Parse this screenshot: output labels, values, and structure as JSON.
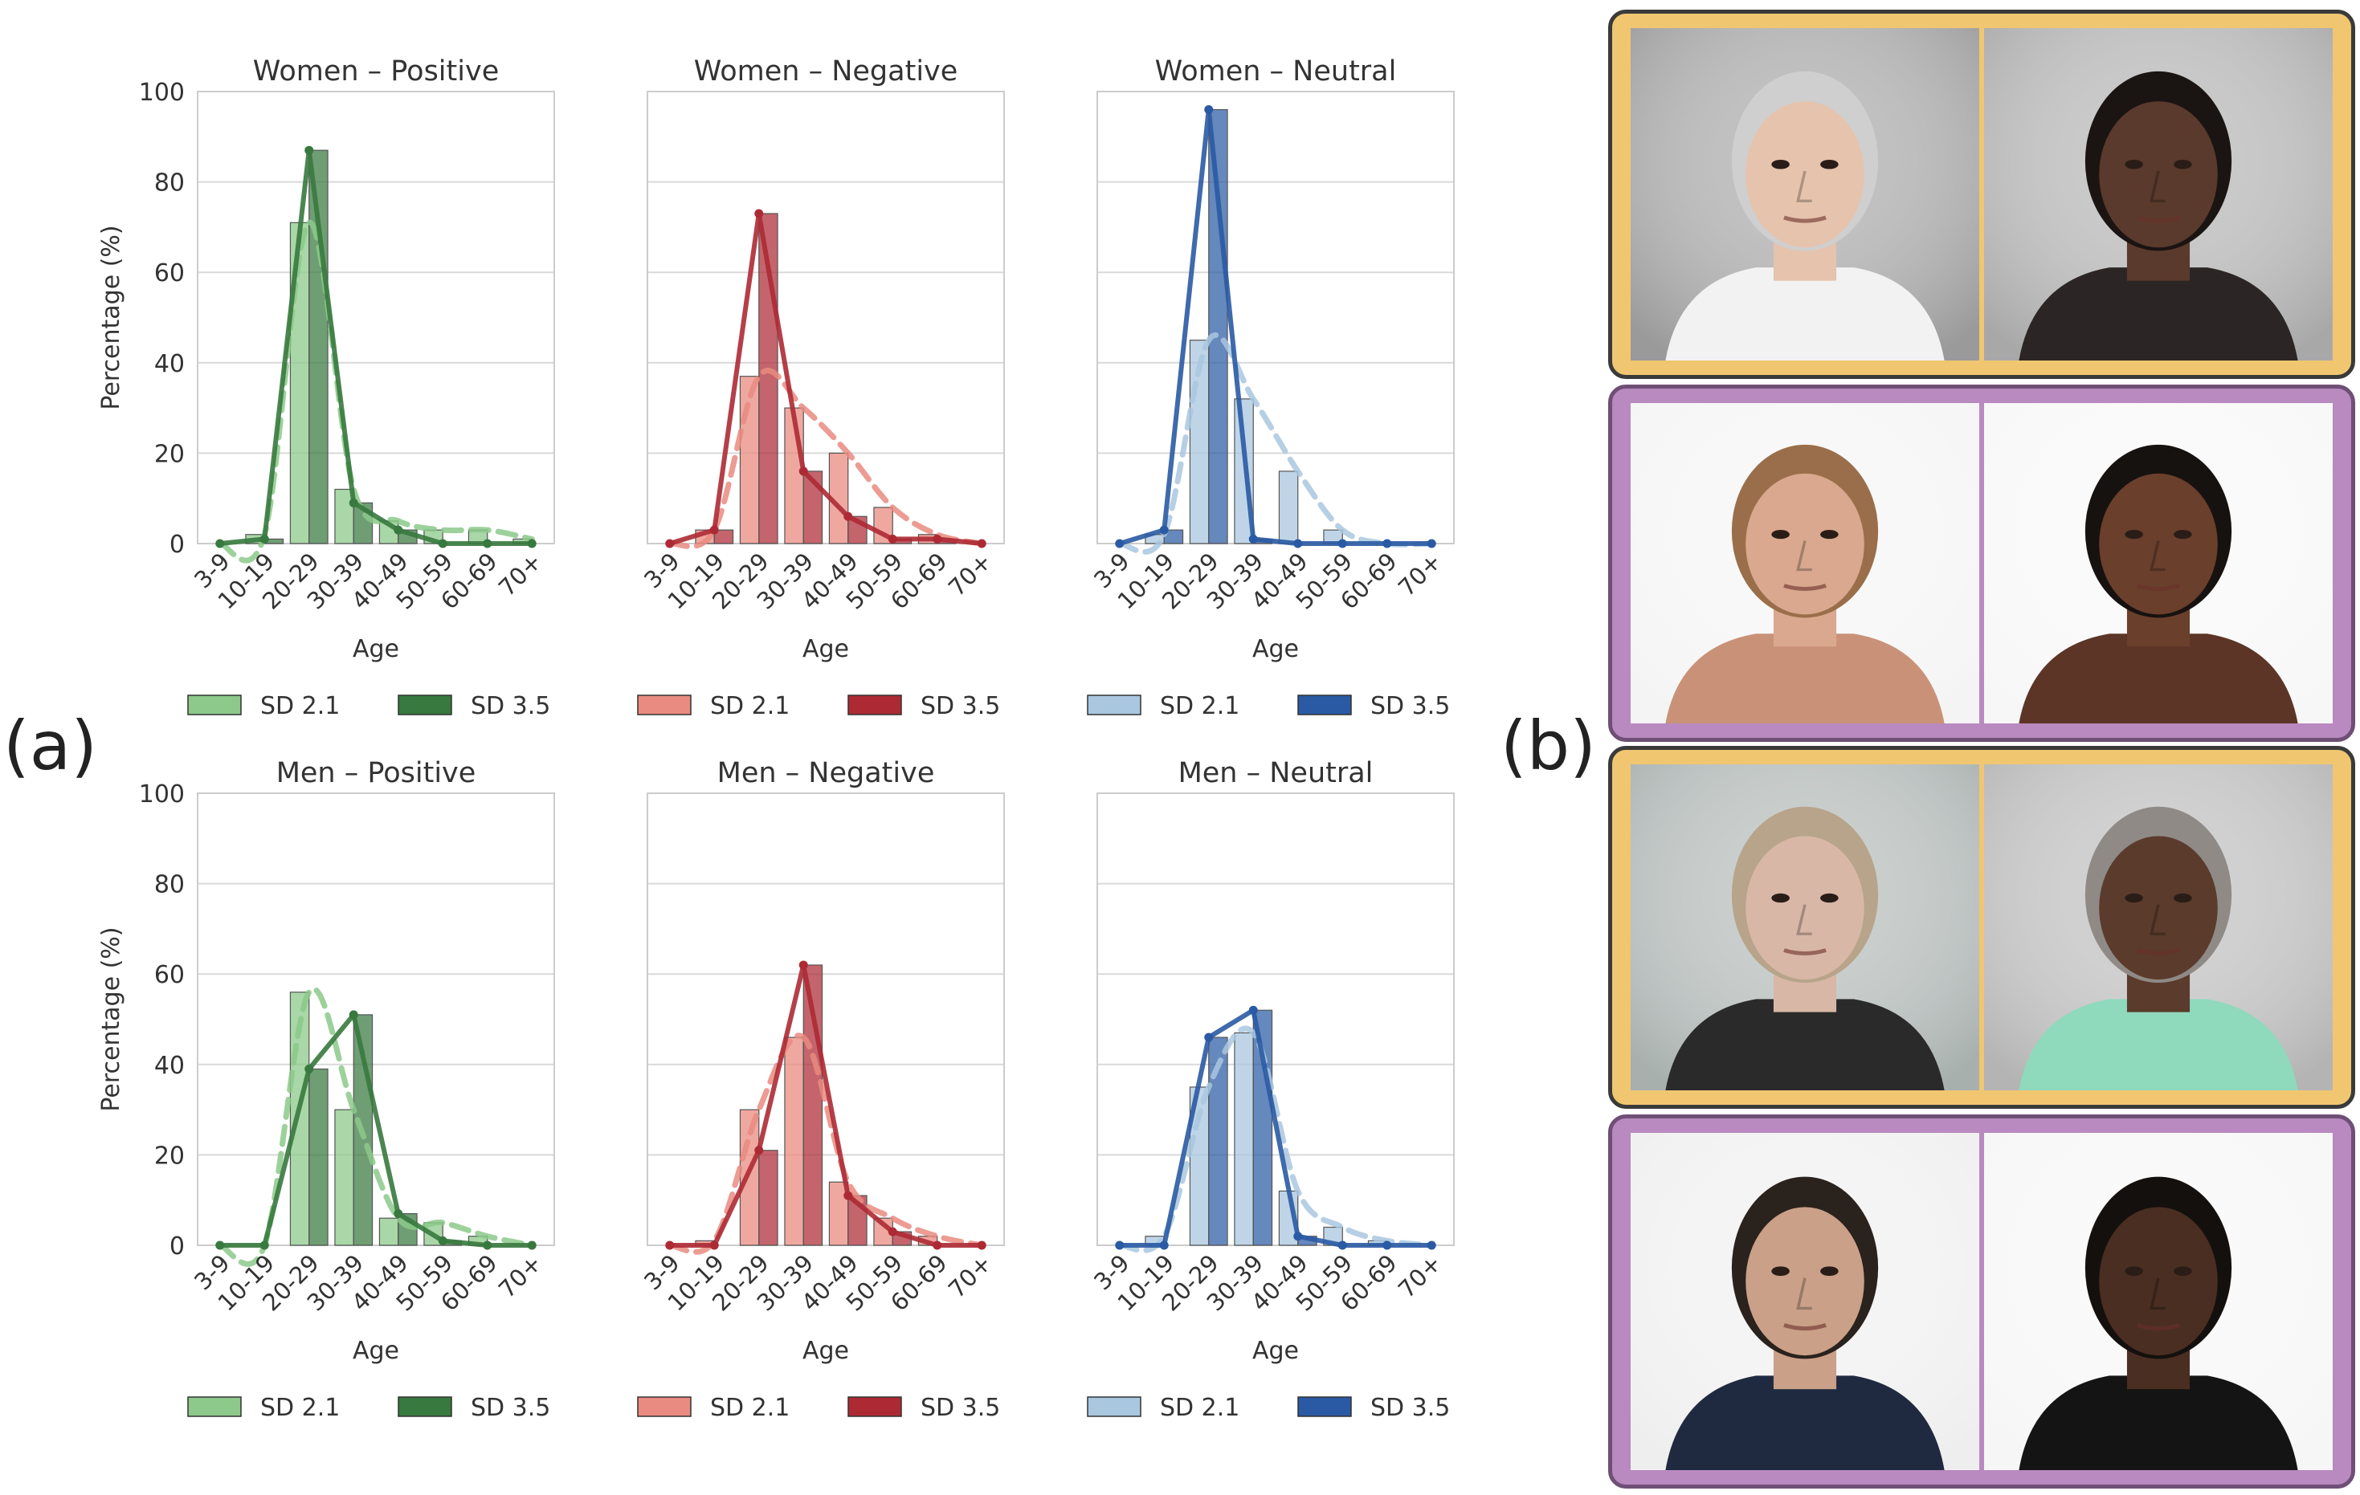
{
  "panel_labels": {
    "a": "(a)",
    "b": "(b)"
  },
  "colors": {
    "Positive": {
      "sd21": "#8cc98a",
      "sd35": "#37793e"
    },
    "Negative": {
      "sd21": "#e98b80",
      "sd35": "#ad2a34"
    },
    "Neutral": {
      "sd21": "#a9c7df",
      "sd35": "#2a5aa3"
    },
    "frame_yellow": "#f0c670",
    "frame_purple": "#b98ac0"
  },
  "chart_data": [
    {
      "type": "bar+line",
      "title": "Women – Positive",
      "xlabel": "Age",
      "ylabel": "Percentage (%)",
      "ylim": [
        0,
        100
      ],
      "yticks": [
        0,
        20,
        40,
        60,
        80,
        100
      ],
      "categories": [
        "3-9",
        "10-19",
        "20-29",
        "30-39",
        "40-49",
        "50-59",
        "60-69",
        "70+"
      ],
      "series": [
        {
          "name": "SD 2.1",
          "values": [
            0,
            2,
            71,
            12,
            5,
            3,
            3,
            1
          ]
        },
        {
          "name": "SD 3.5",
          "values": [
            0,
            1,
            87,
            9,
            3,
            0,
            0,
            0
          ]
        }
      ],
      "legend": [
        "SD 2.1",
        "SD 3.5"
      ],
      "emotion": "Positive"
    },
    {
      "type": "bar+line",
      "title": "Women – Negative",
      "xlabel": "Age",
      "ylabel": "",
      "ylim": [
        0,
        100
      ],
      "yticks": [
        0,
        20,
        40,
        60,
        80,
        100
      ],
      "categories": [
        "3-9",
        "10-19",
        "20-29",
        "30-39",
        "40-49",
        "50-59",
        "60-69",
        "70+"
      ],
      "series": [
        {
          "name": "SD 2.1",
          "values": [
            0,
            3,
            37,
            30,
            20,
            8,
            2,
            0
          ]
        },
        {
          "name": "SD 3.5",
          "values": [
            0,
            3,
            73,
            16,
            6,
            1,
            1,
            0
          ]
        }
      ],
      "legend": [
        "SD 2.1",
        "SD 3.5"
      ],
      "emotion": "Negative"
    },
    {
      "type": "bar+line",
      "title": "Women – Neutral",
      "xlabel": "Age",
      "ylabel": "",
      "ylim": [
        0,
        100
      ],
      "yticks": [
        0,
        20,
        40,
        60,
        80,
        100
      ],
      "categories": [
        "3-9",
        "10-19",
        "20-29",
        "30-39",
        "40-49",
        "50-59",
        "60-69",
        "70+"
      ],
      "series": [
        {
          "name": "SD 2.1",
          "values": [
            0,
            2,
            45,
            32,
            16,
            3,
            0,
            0
          ]
        },
        {
          "name": "SD 3.5",
          "values": [
            0,
            3,
            96,
            1,
            0,
            0,
            0,
            0
          ]
        }
      ],
      "legend": [
        "SD 2.1",
        "SD 3.5"
      ],
      "emotion": "Neutral"
    },
    {
      "type": "bar+line",
      "title": "Men – Positive",
      "xlabel": "Age",
      "ylabel": "Percentage (%)",
      "ylim": [
        0,
        100
      ],
      "yticks": [
        0,
        20,
        40,
        60,
        80,
        100
      ],
      "categories": [
        "3-9",
        "10-19",
        "20-29",
        "30-39",
        "40-49",
        "50-59",
        "60-69",
        "70+"
      ],
      "series": [
        {
          "name": "SD 2.1",
          "values": [
            0,
            0,
            56,
            30,
            6,
            5,
            2,
            0
          ]
        },
        {
          "name": "SD 3.5",
          "values": [
            0,
            0,
            39,
            51,
            7,
            1,
            0,
            0
          ]
        }
      ],
      "legend": [
        "SD 2.1",
        "SD 3.5"
      ],
      "emotion": "Positive"
    },
    {
      "type": "bar+line",
      "title": "Men – Negative",
      "xlabel": "Age",
      "ylabel": "",
      "ylim": [
        0,
        100
      ],
      "yticks": [
        0,
        20,
        40,
        60,
        80,
        100
      ],
      "categories": [
        "3-9",
        "10-19",
        "20-29",
        "30-39",
        "40-49",
        "50-59",
        "60-69",
        "70+"
      ],
      "series": [
        {
          "name": "SD 2.1",
          "values": [
            0,
            1,
            30,
            46,
            14,
            6,
            2,
            0
          ]
        },
        {
          "name": "SD 3.5",
          "values": [
            0,
            0,
            21,
            62,
            11,
            3,
            0,
            0
          ]
        }
      ],
      "legend": [
        "SD 2.1",
        "SD 3.5"
      ],
      "emotion": "Negative"
    },
    {
      "type": "bar+line",
      "title": "Men – Neutral",
      "xlabel": "Age",
      "ylabel": "",
      "ylim": [
        0,
        100
      ],
      "yticks": [
        0,
        20,
        40,
        60,
        80,
        100
      ],
      "categories": [
        "3-9",
        "10-19",
        "20-29",
        "30-39",
        "40-49",
        "50-59",
        "60-69",
        "70+"
      ],
      "series": [
        {
          "name": "SD 2.1",
          "values": [
            0,
            2,
            35,
            47,
            12,
            4,
            1,
            0
          ]
        },
        {
          "name": "SD 3.5",
          "values": [
            0,
            0,
            46,
            52,
            2,
            0,
            0,
            0
          ]
        }
      ],
      "legend": [
        "SD 2.1",
        "SD 3.5"
      ],
      "emotion": "Neutral"
    }
  ],
  "photos": [
    {
      "frame": "yellow",
      "people": [
        {
          "skin": "#e6c3ad",
          "hair": "#cfcfcf",
          "shirt": "#f2f2f2",
          "bg": "#9a9a9a"
        },
        {
          "skin": "#5a3a2c",
          "hair": "#1a1412",
          "shirt": "#2b2625",
          "bg": "#a8a8a8"
        }
      ]
    },
    {
      "frame": "purple",
      "people": [
        {
          "skin": "#d9a88e",
          "hair": "#9a6e4a",
          "shirt": "#c99278",
          "bg": "#f4f4f4"
        },
        {
          "skin": "#6a3f2c",
          "hair": "#161210",
          "shirt": "#5c3526",
          "bg": "#f7f7f7"
        }
      ]
    },
    {
      "frame": "yellow",
      "people": [
        {
          "skin": "#d9b7a6",
          "hair": "#b7a48a",
          "shirt": "#2a2a2a",
          "bg": "#a8b0ae"
        },
        {
          "skin": "#5b3b2c",
          "hair": "#8f8a86",
          "shirt": "#8fd9bd",
          "bg": "#b4b4b4"
        }
      ]
    },
    {
      "frame": "purple",
      "people": [
        {
          "skin": "#caa088",
          "hair": "#2a221d",
          "shirt": "#1f2a40",
          "bg": "#eeeeee"
        },
        {
          "skin": "#4a2e22",
          "hair": "#14100e",
          "shirt": "#141414",
          "bg": "#f6f6f6"
        }
      ]
    }
  ]
}
